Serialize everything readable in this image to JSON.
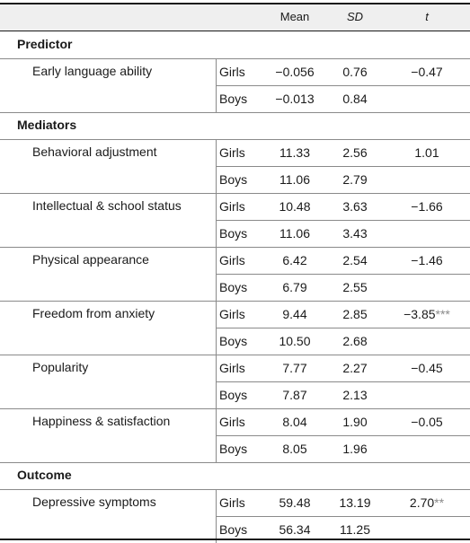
{
  "header": {
    "mean": "Mean",
    "sd": "SD",
    "t": "t"
  },
  "sections": [
    {
      "title": "Predictor",
      "variables": [
        {
          "label": "Early language ability",
          "rows": [
            {
              "group": "Girls",
              "mean": "−0.056",
              "sd": "0.76",
              "t": "−0.47",
              "sig": ""
            },
            {
              "group": "Boys",
              "mean": "−0.013",
              "sd": "0.84",
              "t": "",
              "sig": ""
            }
          ]
        }
      ]
    },
    {
      "title": "Mediators",
      "variables": [
        {
          "label": "Behavioral adjustment",
          "rows": [
            {
              "group": "Girls",
              "mean": "11.33",
              "sd": "2.56",
              "t": "1.01",
              "sig": ""
            },
            {
              "group": "Boys",
              "mean": "11.06",
              "sd": "2.79",
              "t": "",
              "sig": ""
            }
          ]
        },
        {
          "label": "Intellectual & school status",
          "rows": [
            {
              "group": "Girls",
              "mean": "10.48",
              "sd": "3.63",
              "t": "−1.66",
              "sig": ""
            },
            {
              "group": "Boys",
              "mean": "11.06",
              "sd": "3.43",
              "t": "",
              "sig": ""
            }
          ]
        },
        {
          "label": "Physical appearance",
          "rows": [
            {
              "group": "Girls",
              "mean": "6.42",
              "sd": "2.54",
              "t": "−1.46",
              "sig": ""
            },
            {
              "group": "Boys",
              "mean": "6.79",
              "sd": "2.55",
              "t": "",
              "sig": ""
            }
          ]
        },
        {
          "label": "Freedom from anxiety",
          "rows": [
            {
              "group": "Girls",
              "mean": "9.44",
              "sd": "2.85",
              "t": "−3.85",
              "sig": "***"
            },
            {
              "group": "Boys",
              "mean": "10.50",
              "sd": "2.68",
              "t": "",
              "sig": ""
            }
          ]
        },
        {
          "label": "Popularity",
          "rows": [
            {
              "group": "Girls",
              "mean": "7.77",
              "sd": "2.27",
              "t": "−0.45",
              "sig": ""
            },
            {
              "group": "Boys",
              "mean": "7.87",
              "sd": "2.13",
              "t": "",
              "sig": ""
            }
          ]
        },
        {
          "label": "Happiness & satisfaction",
          "rows": [
            {
              "group": "Girls",
              "mean": "8.04",
              "sd": "1.90",
              "t": "−0.05",
              "sig": ""
            },
            {
              "group": "Boys",
              "mean": "8.05",
              "sd": "1.96",
              "t": "",
              "sig": ""
            }
          ]
        }
      ]
    },
    {
      "title": "Outcome",
      "variables": [
        {
          "label": "Depressive symptoms",
          "rows": [
            {
              "group": "Girls",
              "mean": "59.48",
              "sd": "13.19",
              "t": "2.70",
              "sig": "**"
            },
            {
              "group": "Boys",
              "mean": "56.34",
              "sd": "11.25",
              "t": "",
              "sig": ""
            }
          ]
        }
      ]
    }
  ]
}
